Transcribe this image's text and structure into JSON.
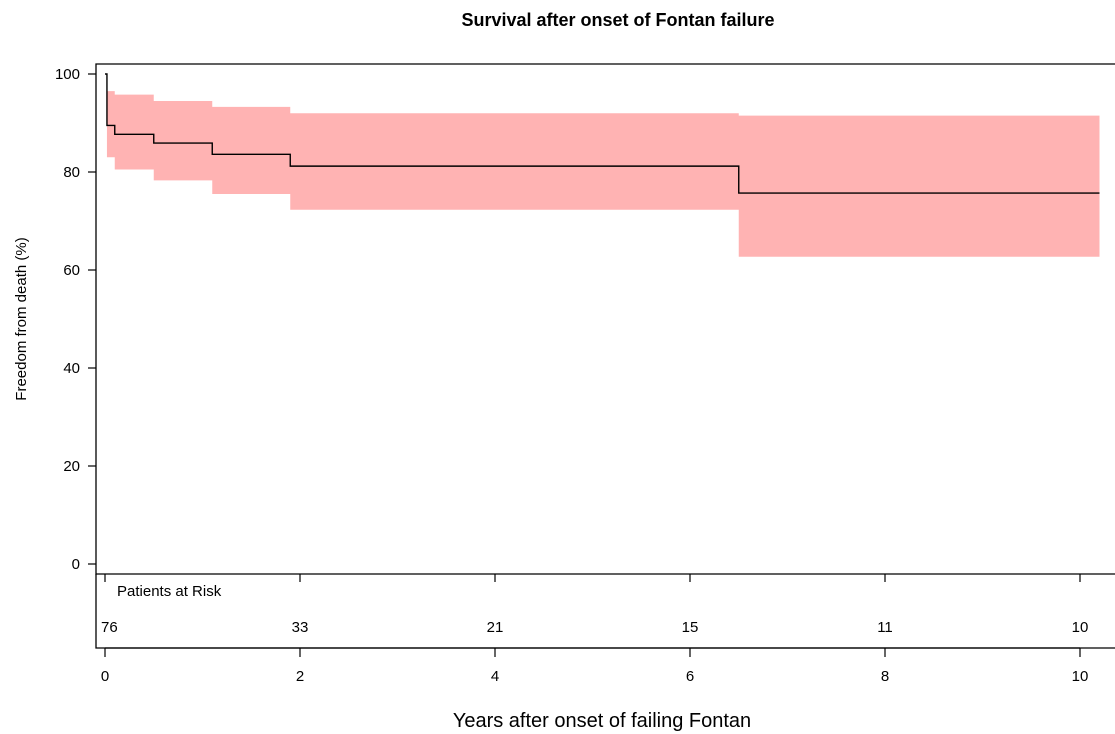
{
  "chart_data": {
    "type": "line",
    "title": "Survival after onset of Fontan failure",
    "xlabel": "Years after onset of failing Fontan",
    "ylabel": "Freedom from death (%)",
    "xlim": [
      0,
      10.2
    ],
    "ylim": [
      0,
      100
    ],
    "x_ticks": [
      0,
      2,
      4,
      6,
      8,
      10
    ],
    "y_ticks": [
      0,
      20,
      40,
      60,
      80,
      100
    ],
    "grid": false,
    "confidence_band_color": "#ffb3b3",
    "line_color": "#000000",
    "series": [
      {
        "step_x": [
          0,
          0.02,
          0.1,
          0.5,
          1.1,
          1.9,
          6.5,
          10.2
        ],
        "step_y": [
          100,
          89.5,
          87.7,
          85.9,
          83.6,
          81.2,
          75.7,
          75.7
        ],
        "ci_upper": [
          100,
          96.5,
          95.8,
          94.5,
          93.3,
          92.0,
          91.5,
          91.5
        ],
        "ci_lower": [
          100,
          83.0,
          80.5,
          78.3,
          75.5,
          72.3,
          62.7,
          62.7
        ]
      }
    ],
    "risk_table": {
      "label": "Patients at Risk",
      "x": [
        0,
        2,
        4,
        6,
        8,
        10
      ],
      "counts": [
        "76",
        "33",
        "21",
        "15",
        "11",
        "10"
      ]
    }
  }
}
